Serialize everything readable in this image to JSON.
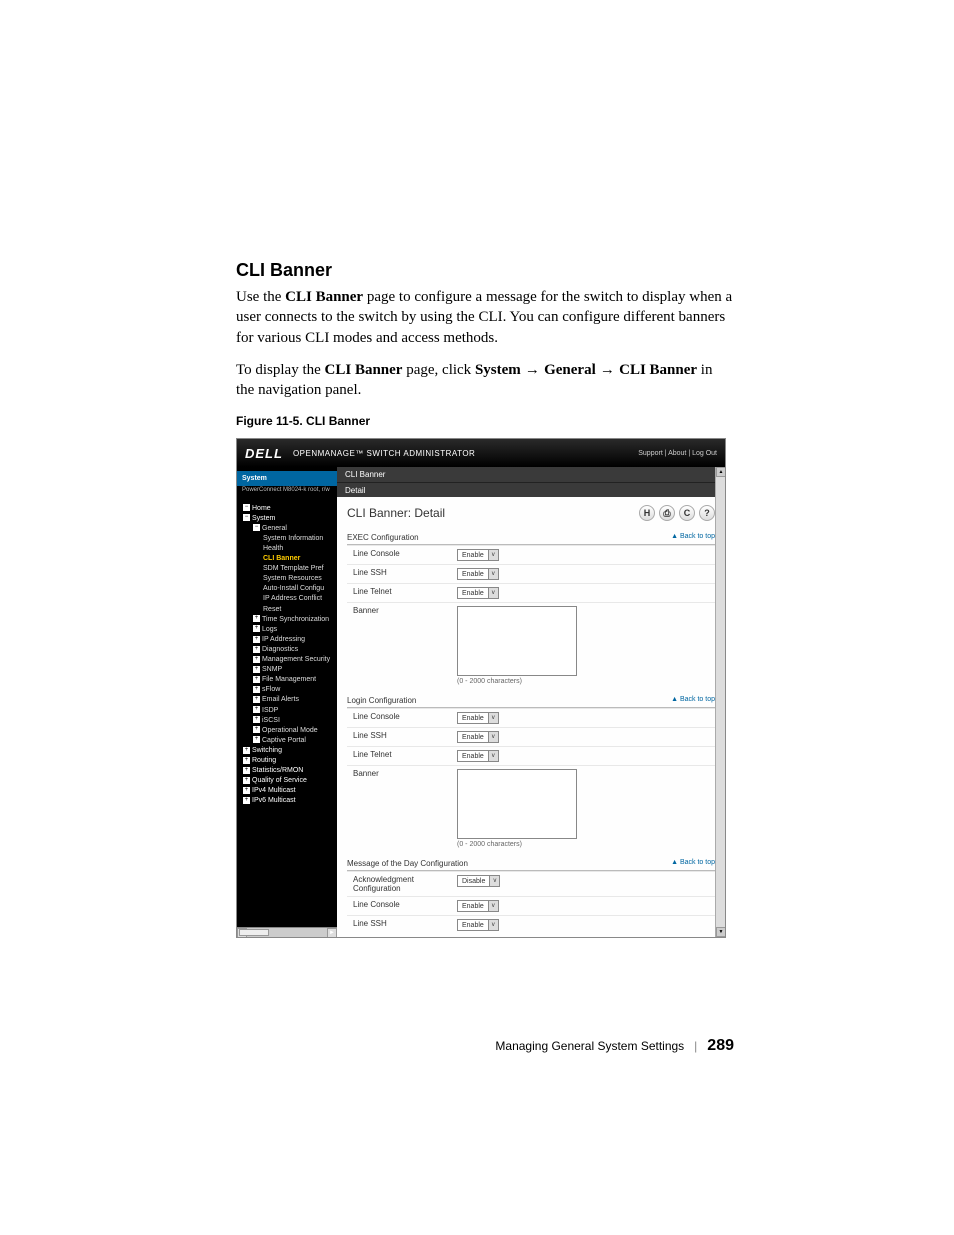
{
  "doc": {
    "section_title": "CLI Banner",
    "para1_pre": "Use the ",
    "para1_bold": "CLI Banner",
    "para1_post": " page to configure a message for the switch to display when a user connects to the switch by using the CLI. You can configure different banners for various CLI modes and access methods.",
    "para2_pre": "To display the ",
    "para2_bold": "CLI Banner",
    "para2_mid": " page, click ",
    "para2_path1": "System",
    "para2_path2": "General",
    "para2_path3": "CLI Banner",
    "para2_post": " in the navigation panel.",
    "figure_caption": "Figure 11-5.    CLI Banner",
    "footer_text": "Managing General System Settings",
    "page_number": "289"
  },
  "screenshot": {
    "header": {
      "brand": "DELL",
      "product": "OPENMANAGE™ SWITCH ADMINISTRATOR",
      "toplinks": "Support | About | Log Out"
    },
    "sidebar": {
      "head": "System",
      "sub": "PowerConnect M8024-k\nroot, r/w",
      "items": [
        {
          "txt": "Home",
          "lvl": 0,
          "box": "−"
        },
        {
          "txt": "System",
          "lvl": 0,
          "box": "−"
        },
        {
          "txt": "General",
          "lvl": 1,
          "box": "−"
        },
        {
          "txt": "System Information",
          "lvl": 2
        },
        {
          "txt": "Health",
          "lvl": 2
        },
        {
          "txt": "CLI Banner",
          "lvl": 2,
          "active": true
        },
        {
          "txt": "SDM Template Pref",
          "lvl": 2
        },
        {
          "txt": "System Resources",
          "lvl": 2
        },
        {
          "txt": "Auto-Install Configu",
          "lvl": 2
        },
        {
          "txt": "IP Address Conflict",
          "lvl": 2
        },
        {
          "txt": "Reset",
          "lvl": 2
        },
        {
          "txt": "Time Synchronization",
          "lvl": 1,
          "box": "+"
        },
        {
          "txt": "Logs",
          "lvl": 1,
          "box": "+"
        },
        {
          "txt": "IP Addressing",
          "lvl": 1,
          "box": "+"
        },
        {
          "txt": "Diagnostics",
          "lvl": 1,
          "box": "+"
        },
        {
          "txt": "Management Security",
          "lvl": 1,
          "box": "+"
        },
        {
          "txt": "SNMP",
          "lvl": 1,
          "box": "+"
        },
        {
          "txt": "File Management",
          "lvl": 1,
          "box": "+"
        },
        {
          "txt": "sFlow",
          "lvl": 1,
          "box": "+"
        },
        {
          "txt": "Email Alerts",
          "lvl": 1,
          "box": "+"
        },
        {
          "txt": "ISDP",
          "lvl": 1,
          "box": "+"
        },
        {
          "txt": "iSCSI",
          "lvl": 1,
          "box": "+"
        },
        {
          "txt": "Operational Mode",
          "lvl": 1,
          "box": "+"
        },
        {
          "txt": "Captive Portal",
          "lvl": 1,
          "box": "+"
        },
        {
          "txt": "Switching",
          "lvl": 0,
          "box": "+"
        },
        {
          "txt": "Routing",
          "lvl": 0,
          "box": "+"
        },
        {
          "txt": "Statistics/RMON",
          "lvl": 0,
          "box": "+"
        },
        {
          "txt": "Quality of Service",
          "lvl": 0,
          "box": "+"
        },
        {
          "txt": "IPv4 Multicast",
          "lvl": 0,
          "box": "+"
        },
        {
          "txt": "IPv6 Multicast",
          "lvl": 0,
          "box": "+"
        }
      ]
    },
    "main": {
      "crumb1": "CLI Banner",
      "crumb2": "Detail",
      "title": "CLI Banner: Detail",
      "icons": {
        "save": "H",
        "print": "⎙",
        "refresh": "C",
        "help": "?"
      },
      "back_to_top": "▲ Back to top",
      "char_hint": "(0 - 2000 characters)",
      "sections": [
        {
          "name": "EXEC Configuration",
          "rows": [
            {
              "label": "Line Console",
              "type": "select",
              "value": "Enable"
            },
            {
              "label": "Line SSH",
              "type": "select",
              "value": "Enable"
            },
            {
              "label": "Line Telnet",
              "type": "select",
              "value": "Enable"
            },
            {
              "label": "Banner",
              "type": "textarea"
            }
          ]
        },
        {
          "name": "Login Configuration",
          "rows": [
            {
              "label": "Line Console",
              "type": "select",
              "value": "Enable"
            },
            {
              "label": "Line SSH",
              "type": "select",
              "value": "Enable"
            },
            {
              "label": "Line Telnet",
              "type": "select",
              "value": "Enable"
            },
            {
              "label": "Banner",
              "type": "textarea"
            }
          ]
        },
        {
          "name": "Message of the Day Configuration",
          "rows": [
            {
              "label": "Acknowledgment Configuration",
              "type": "select",
              "value": "Disable"
            },
            {
              "label": "Line Console",
              "type": "select",
              "value": "Enable"
            },
            {
              "label": "Line SSH",
              "type": "select",
              "value": "Enable"
            }
          ]
        }
      ]
    }
  },
  "colors": {
    "link": "#0066a1",
    "sidebar_bg": "#000000",
    "header_bg": "#1a1a1a"
  }
}
